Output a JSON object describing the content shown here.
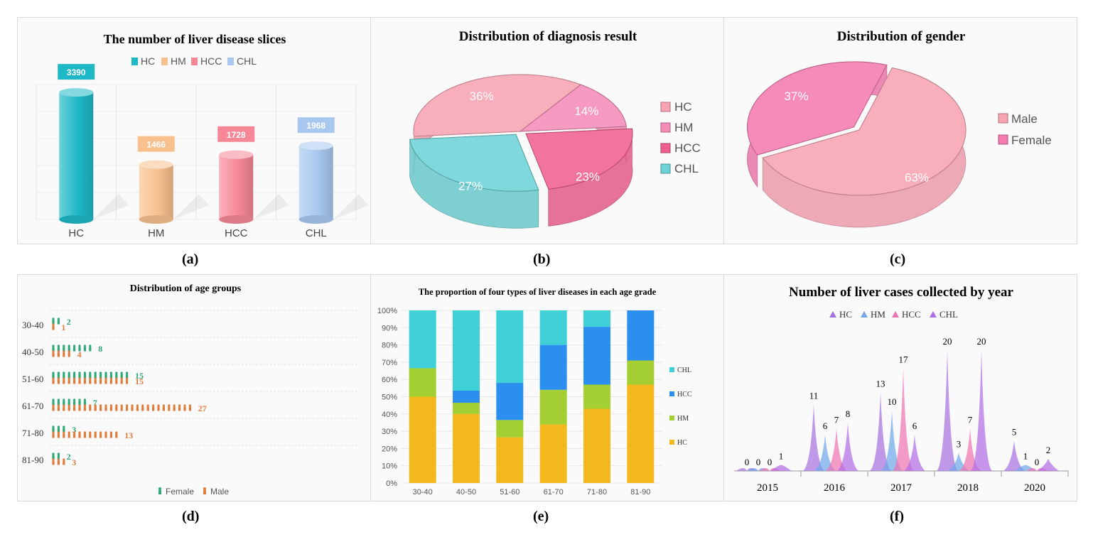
{
  "captions": [
    "(a)",
    "(b)",
    "(c)",
    "(d)",
    "(e)",
    "(f)"
  ],
  "colors": {
    "HC": "#1fb8c6",
    "HM": "#f7c08e",
    "HCC": "#f58797",
    "CHL": "#a8c8f0",
    "female": "#2aa876",
    "male": "#e07a3a"
  },
  "chart_data": [
    {
      "type": "bar",
      "title": "The number of liver disease slices",
      "categories": [
        "HC",
        "HM",
        "HCC",
        "CHL"
      ],
      "values": [
        3390,
        1466,
        1728,
        1968
      ],
      "legend": [
        "HC",
        "HM",
        "HCC",
        "CHL"
      ],
      "legend_position": "top",
      "ylim": [
        0,
        3600
      ]
    },
    {
      "type": "pie",
      "title": "Distribution of diagnosis result",
      "labels": [
        "HC",
        "HM",
        "HCC",
        "CHL"
      ],
      "values": [
        36,
        14,
        23,
        27
      ],
      "value_labels": [
        "36%",
        "14%",
        "23%",
        "27%"
      ],
      "legend_position": "right"
    },
    {
      "type": "pie",
      "title": "Distribution of gender",
      "labels": [
        "Male",
        "Female"
      ],
      "values": [
        63,
        37
      ],
      "value_labels": [
        "63%",
        "37%"
      ],
      "legend_position": "right"
    },
    {
      "type": "bar",
      "title": "Distribution of age groups",
      "categories": [
        "30-40",
        "40-50",
        "51-60",
        "61-70",
        "71-80",
        "81-90"
      ],
      "series": [
        {
          "name": "Female",
          "values": [
            2,
            8,
            15,
            7,
            3,
            2
          ]
        },
        {
          "name": "Male",
          "values": [
            1,
            4,
            15,
            27,
            13,
            3
          ]
        }
      ],
      "legend_position": "bottom"
    },
    {
      "type": "bar",
      "title": "The proportion of four types of liver diseases in each age grade",
      "categories": [
        "30-40",
        "40-50",
        "51-60",
        "61-70",
        "71-80",
        "81-90"
      ],
      "series": [
        {
          "name": "HC",
          "values": [
            50,
            40,
            26.5,
            34,
            43,
            57
          ]
        },
        {
          "name": "HM",
          "values": [
            16.5,
            6.5,
            10,
            20,
            14,
            14
          ]
        },
        {
          "name": "HCC",
          "values": [
            0,
            7,
            21.5,
            26,
            33.5,
            29
          ]
        },
        {
          "name": "CHL",
          "values": [
            33.5,
            46.5,
            42,
            20,
            9.5,
            0
          ]
        }
      ],
      "y_ticks": [
        "0%",
        "10%",
        "20%",
        "30%",
        "40%",
        "50%",
        "60%",
        "70%",
        "80%",
        "90%",
        "100%"
      ],
      "ylim": [
        0,
        100
      ],
      "legend_position": "right"
    },
    {
      "type": "area",
      "title": "Number of liver cases collected by year",
      "categories": [
        "2015",
        "2016",
        "2017",
        "2018",
        "2020"
      ],
      "series": [
        {
          "name": "HC",
          "values": [
            0,
            11,
            13,
            20,
            5
          ]
        },
        {
          "name": "HM",
          "values": [
            0,
            6,
            10,
            3,
            1
          ]
        },
        {
          "name": "HCC",
          "values": [
            0,
            7,
            17,
            7,
            0
          ]
        },
        {
          "name": "CHL",
          "values": [
            1,
            8,
            6,
            20,
            2
          ]
        }
      ],
      "legend_position": "top"
    }
  ]
}
